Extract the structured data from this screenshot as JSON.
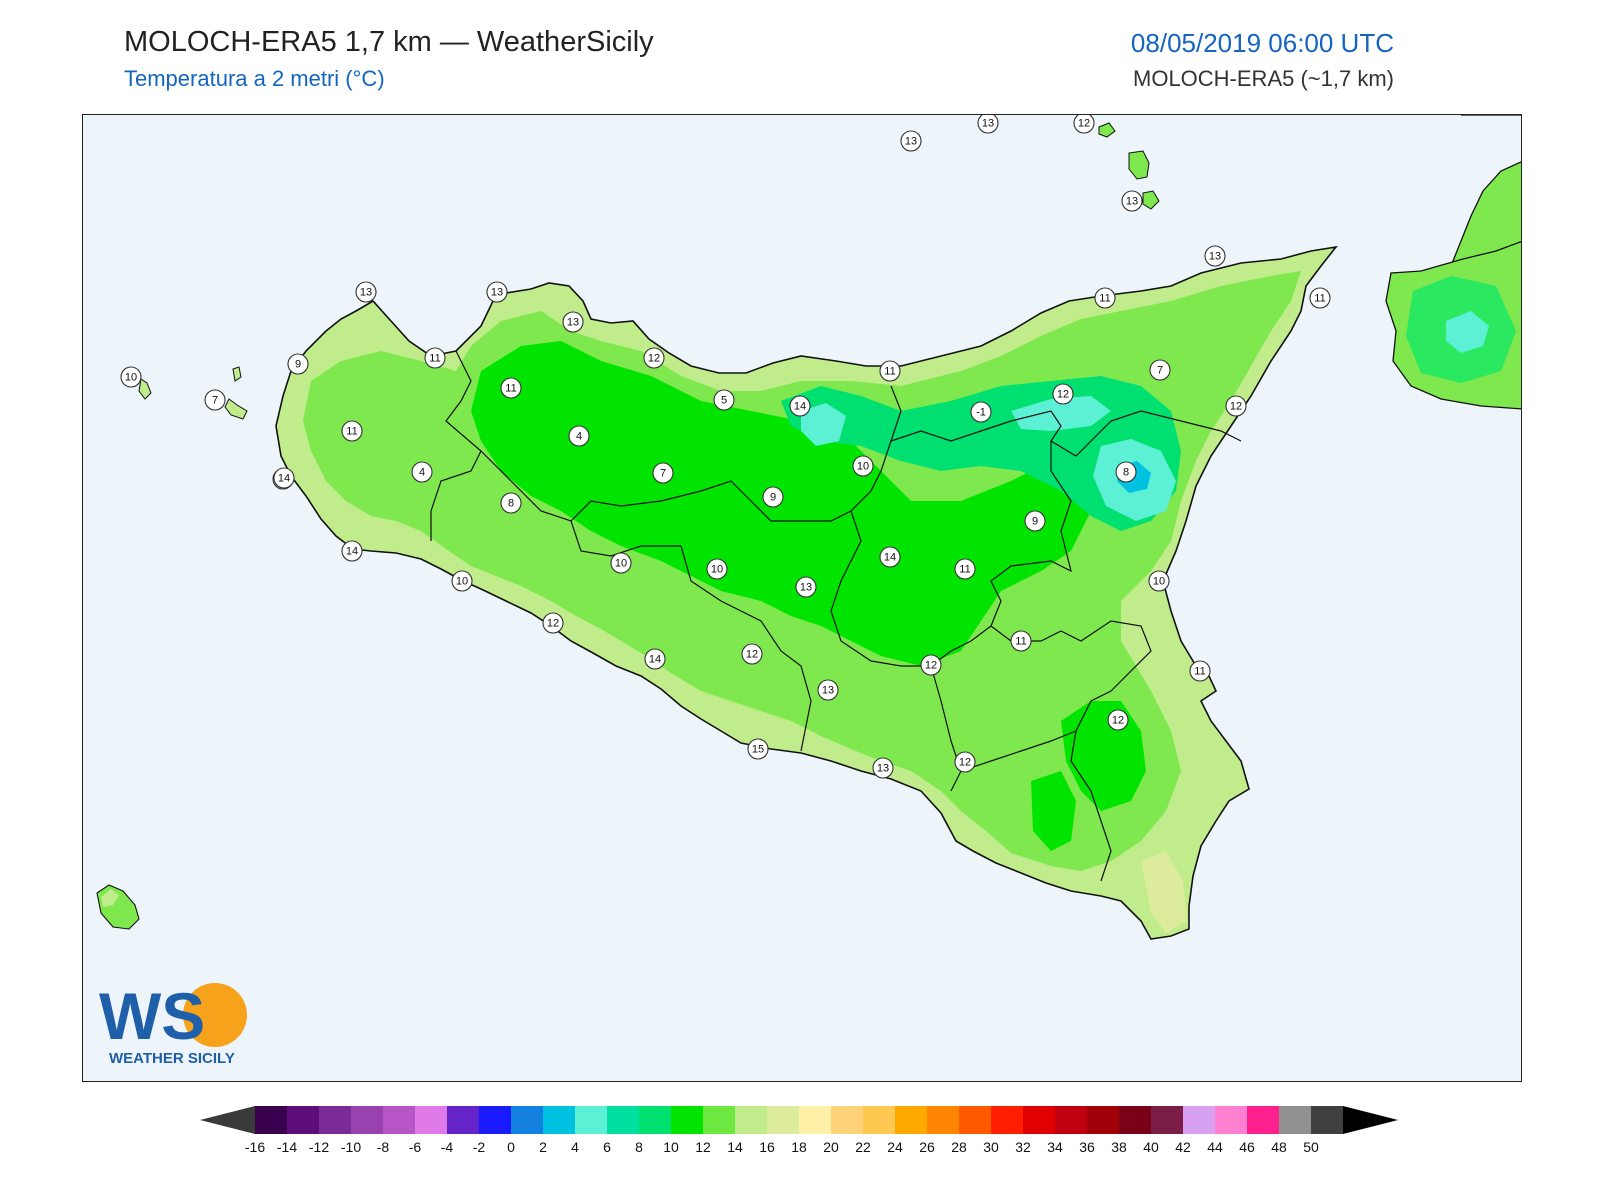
{
  "header": {
    "title": "MOLOCH-ERA5 1,7 km — WeatherSicily",
    "subtitle": "Temperatura a 2 metri (°C)",
    "datetime": "08/05/2019 06:00 UTC",
    "model": "MOLOCH-ERA5 (~1,7 km)"
  },
  "logo": {
    "letters": "WS",
    "text": "WEATHER SICILY"
  },
  "map": {
    "sea_color": "#eef5fa",
    "border_color": "#111111",
    "station_values": [
      "13",
      "13",
      "12",
      "13",
      "13",
      "11",
      "11",
      "12",
      "13",
      "13",
      "11",
      "13",
      "12",
      "10",
      "7",
      "9",
      "11",
      "5",
      "8",
      "11",
      "4",
      "4",
      "7",
      "14",
      "11",
      "-1",
      "12",
      "7",
      "8",
      "10",
      "9",
      "8",
      "9",
      "10",
      "10",
      "14",
      "13",
      "11",
      "10",
      "11",
      "11",
      "12",
      "12",
      "13",
      "12",
      "14",
      "12",
      "10",
      "14",
      "14",
      "15",
      "12",
      "13"
    ]
  },
  "colorbar": {
    "ticks": [
      "-16",
      "-14",
      "-12",
      "-10",
      "-8",
      "-6",
      "-4",
      "-2",
      "0",
      "2",
      "4",
      "6",
      "8",
      "10",
      "12",
      "14",
      "16",
      "18",
      "20",
      "22",
      "24",
      "26",
      "28",
      "30",
      "32",
      "34",
      "36",
      "38",
      "40",
      "42",
      "44",
      "46",
      "48",
      "50"
    ],
    "colors": [
      "#3a0050",
      "#5c0f7a",
      "#7a2b95",
      "#9742ad",
      "#b556c4",
      "#e07ae8",
      "#6424c8",
      "#1a1aff",
      "#1480e0",
      "#00c2e0",
      "#5cf0d4",
      "#00e0a0",
      "#00e070",
      "#00e400",
      "#6ce840",
      "#c0ec8c",
      "#dcec9c",
      "#fff0a8",
      "#ffd27a",
      "#ffc850",
      "#ffa800",
      "#ff8400",
      "#ff5a00",
      "#ff1e00",
      "#e00000",
      "#c00010",
      "#a00008",
      "#7a0018",
      "#7a1e46",
      "#d8a0f0",
      "#ff80d0",
      "#ff2090",
      "#909090",
      "#404040"
    ],
    "under_color": "#3a3a3a",
    "over_color": "#000000"
  }
}
